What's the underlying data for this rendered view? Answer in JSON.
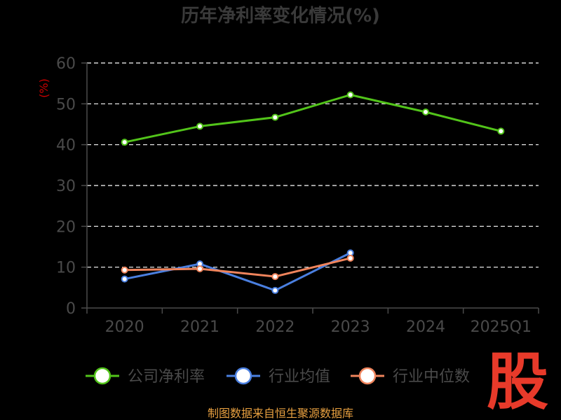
{
  "colors": {
    "background": "#000000",
    "title": "#3a3a3a",
    "axis": "#4a4a4a",
    "grid": "#ffffff",
    "tick_label": "#4a4a4a",
    "unit_label": "#cc0000",
    "source": "#e8a040",
    "stamp": "#e83a2a"
  },
  "source_text": "制图数据来自恒生聚源数据库",
  "stamp_char": "股",
  "chart_data": {
    "type": "line",
    "title": "历年净利率变化情况(%)",
    "ylabel": "(%)",
    "xlabel": "",
    "categories": [
      "2020",
      "2021",
      "2022",
      "2023",
      "2024",
      "2025Q1"
    ],
    "ylim": [
      0,
      60
    ],
    "yticks": [
      0,
      10,
      20,
      30,
      40,
      50,
      60
    ],
    "grid": true,
    "legend_position": "bottom",
    "series": [
      {
        "name": "公司净利率",
        "color": "#52c41a",
        "values": [
          40.6,
          44.5,
          46.7,
          52.2,
          48.0,
          43.3
        ]
      },
      {
        "name": "行业均值",
        "color": "#4a7fe0",
        "values": [
          7.1,
          10.8,
          4.3,
          13.5,
          null,
          null
        ]
      },
      {
        "name": "行业中位数",
        "color": "#f0845c",
        "values": [
          9.3,
          9.6,
          7.7,
          12.2,
          null,
          null
        ]
      }
    ]
  }
}
